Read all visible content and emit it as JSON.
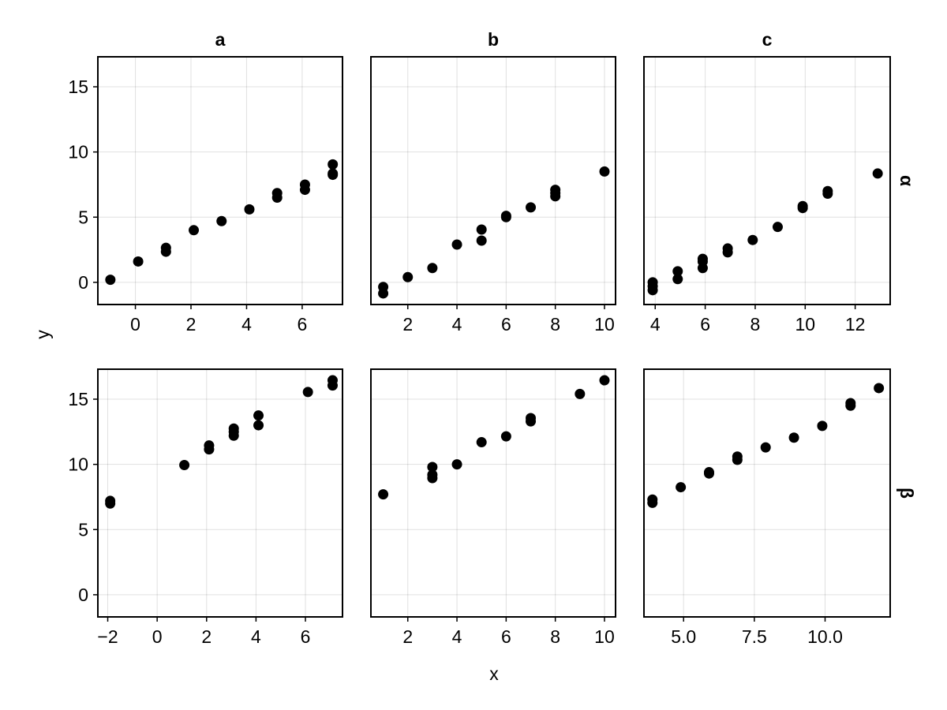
{
  "chart_data": {
    "type": "scatter",
    "layout": "facet-grid",
    "xlabel": "x",
    "ylabel": "y",
    "columns": [
      "a",
      "b",
      "c"
    ],
    "rows": [
      "α",
      "β"
    ],
    "ylim": [
      -1.7,
      17.3
    ],
    "yticks": [
      0,
      5,
      10,
      15
    ],
    "grid": true,
    "point_color": "#000000",
    "panels": [
      {
        "col": "a",
        "row": "α",
        "xlim": [
          -1.35,
          7.45
        ],
        "xticks": [
          0,
          2,
          4,
          6
        ],
        "xtick_labels": [
          "0",
          "2",
          "4",
          "6"
        ],
        "points": [
          [
            -0.9,
            0.2
          ],
          [
            0.1,
            1.6
          ],
          [
            1.1,
            2.35
          ],
          [
            1.1,
            2.65
          ],
          [
            2.1,
            4.0
          ],
          [
            3.1,
            4.7
          ],
          [
            4.1,
            5.6
          ],
          [
            5.1,
            6.5
          ],
          [
            5.1,
            6.85
          ],
          [
            6.1,
            7.1
          ],
          [
            6.1,
            7.5
          ],
          [
            7.1,
            8.25
          ],
          [
            7.1,
            8.35
          ],
          [
            7.1,
            9.05
          ]
        ]
      },
      {
        "col": "b",
        "row": "α",
        "xlim": [
          0.5,
          10.45
        ],
        "xticks": [
          2,
          4,
          6,
          8,
          10
        ],
        "xtick_labels": [
          "2",
          "4",
          "6",
          "8",
          "10"
        ],
        "points": [
          [
            1.0,
            -0.85
          ],
          [
            1.0,
            -0.35
          ],
          [
            2.0,
            0.4
          ],
          [
            3.0,
            1.1
          ],
          [
            4.0,
            2.9
          ],
          [
            5.0,
            3.2
          ],
          [
            5.0,
            4.05
          ],
          [
            6.0,
            5.0
          ],
          [
            6.0,
            5.1
          ],
          [
            7.0,
            5.75
          ],
          [
            8.0,
            6.6
          ],
          [
            8.0,
            6.85
          ],
          [
            8.0,
            7.1
          ],
          [
            10.0,
            8.5
          ]
        ]
      },
      {
        "col": "c",
        "row": "α",
        "xlim": [
          3.55,
          13.4
        ],
        "xticks": [
          4,
          6,
          8,
          10,
          12
        ],
        "xtick_labels": [
          "4",
          "6",
          "8",
          "10",
          "12"
        ],
        "points": [
          [
            3.9,
            -0.6
          ],
          [
            3.9,
            -0.3
          ],
          [
            3.9,
            0.0
          ],
          [
            4.9,
            0.25
          ],
          [
            4.9,
            0.85
          ],
          [
            5.9,
            1.1
          ],
          [
            5.9,
            1.6
          ],
          [
            5.9,
            1.8
          ],
          [
            6.9,
            2.3
          ],
          [
            6.9,
            2.6
          ],
          [
            7.9,
            3.25
          ],
          [
            8.9,
            4.25
          ],
          [
            9.9,
            5.7
          ],
          [
            9.9,
            5.85
          ],
          [
            10.9,
            6.8
          ],
          [
            10.9,
            7.0
          ],
          [
            12.9,
            8.35
          ]
        ]
      },
      {
        "col": "a",
        "row": "β",
        "xlim": [
          -2.4,
          7.5
        ],
        "xticks": [
          -2,
          0,
          2,
          4,
          6
        ],
        "xtick_labels": [
          "−2",
          "0",
          "2",
          "4",
          "6"
        ],
        "points": [
          [
            -1.9,
            7.0
          ],
          [
            -1.9,
            7.2
          ],
          [
            1.1,
            9.95
          ],
          [
            2.1,
            11.15
          ],
          [
            2.1,
            11.45
          ],
          [
            3.1,
            12.2
          ],
          [
            3.1,
            12.5
          ],
          [
            3.1,
            12.75
          ],
          [
            4.1,
            13.0
          ],
          [
            4.1,
            13.75
          ],
          [
            6.1,
            15.55
          ],
          [
            7.1,
            16.05
          ],
          [
            7.1,
            16.45
          ]
        ]
      },
      {
        "col": "b",
        "row": "β",
        "xlim": [
          0.5,
          10.45
        ],
        "xticks": [
          2,
          4,
          6,
          8,
          10
        ],
        "xtick_labels": [
          "2",
          "4",
          "6",
          "8",
          "10"
        ],
        "points": [
          [
            1.0,
            7.7
          ],
          [
            3.0,
            8.95
          ],
          [
            3.0,
            9.2
          ],
          [
            3.0,
            9.8
          ],
          [
            4.0,
            10.0
          ],
          [
            5.0,
            11.7
          ],
          [
            6.0,
            12.15
          ],
          [
            7.0,
            13.3
          ],
          [
            7.0,
            13.55
          ],
          [
            9.0,
            15.4
          ],
          [
            10.0,
            16.45
          ]
        ]
      },
      {
        "col": "c",
        "row": "β",
        "xlim": [
          3.6,
          12.3
        ],
        "xticks": [
          5.0,
          7.5,
          10.0
        ],
        "xtick_labels": [
          "5.0",
          "7.5",
          "10.0"
        ],
        "points": [
          [
            3.9,
            7.05
          ],
          [
            3.9,
            7.3
          ],
          [
            4.9,
            8.25
          ],
          [
            5.9,
            9.3
          ],
          [
            5.9,
            9.4
          ],
          [
            6.9,
            10.35
          ],
          [
            6.9,
            10.6
          ],
          [
            7.9,
            11.3
          ],
          [
            8.9,
            12.05
          ],
          [
            9.9,
            12.95
          ],
          [
            10.9,
            14.5
          ],
          [
            10.9,
            14.7
          ],
          [
            11.9,
            15.85
          ]
        ]
      }
    ]
  }
}
